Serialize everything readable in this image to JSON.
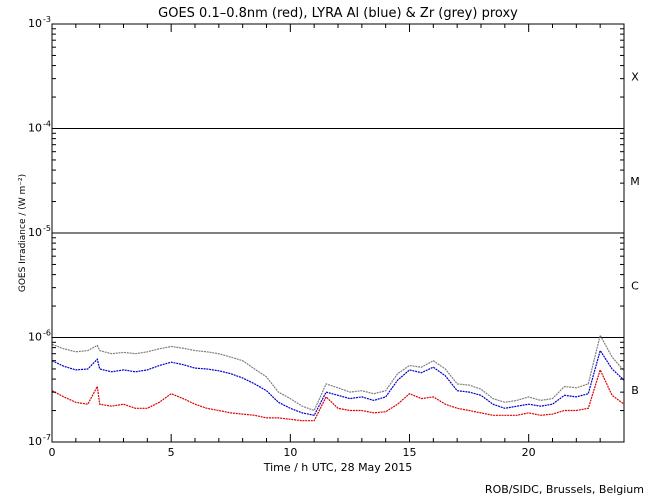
{
  "chart_data": {
    "type": "line",
    "title": "GOES 0.1–0.8nm (red), LYRA Al (blue) & Zr (grey) proxy",
    "xlabel": "Time / h UTC, 28 May 2015",
    "ylabel": "GOES Irradiance / (W m⁻²)",
    "xlim": [
      0,
      24
    ],
    "ylim": [
      1e-07,
      0.001
    ],
    "yscale": "log",
    "x_ticks": [
      0,
      5,
      10,
      15,
      20
    ],
    "y_ticks": [
      {
        "value": 1e-07,
        "mant": "10",
        "exp": "-7"
      },
      {
        "value": 1e-06,
        "mant": "10",
        "exp": "-6"
      },
      {
        "value": 1e-05,
        "mant": "10",
        "exp": "-5"
      },
      {
        "value": 0.0001,
        "mant": "10",
        "exp": "-4"
      },
      {
        "value": 0.001,
        "mant": "10",
        "exp": "-3"
      }
    ],
    "class_lines": [
      1e-06,
      1e-05,
      0.0001
    ],
    "flare_classes": [
      {
        "label": "X",
        "value": 0.000316
      },
      {
        "label": "M",
        "value": 3.16e-05
      },
      {
        "label": "C",
        "value": 3.16e-06
      },
      {
        "label": "B",
        "value": 3.16e-07
      }
    ],
    "series": [
      {
        "color": "#808080",
        "points": [
          [
            0,
            8.6e-07
          ],
          [
            0.5,
            7.8e-07
          ],
          [
            1.0,
            7.3e-07
          ],
          [
            1.5,
            7.5e-07
          ],
          [
            1.9,
            8.4e-07
          ],
          [
            2.0,
            7.5e-07
          ],
          [
            2.5,
            7e-07
          ],
          [
            3.0,
            7.2e-07
          ],
          [
            3.5,
            7e-07
          ],
          [
            4.0,
            7.3e-07
          ],
          [
            4.5,
            7.8e-07
          ],
          [
            5.0,
            8.2e-07
          ],
          [
            5.5,
            7.9e-07
          ],
          [
            6.0,
            7.5e-07
          ],
          [
            6.5,
            7.3e-07
          ],
          [
            7.0,
            7e-07
          ],
          [
            7.5,
            6.5e-07
          ],
          [
            8.0,
            6e-07
          ],
          [
            8.5,
            5e-07
          ],
          [
            9.0,
            4.2e-07
          ],
          [
            9.5,
            3e-07
          ],
          [
            10.0,
            2.6e-07
          ],
          [
            10.5,
            2.2e-07
          ],
          [
            11.0,
            2e-07
          ],
          [
            11.5,
            3.6e-07
          ],
          [
            12.0,
            3.3e-07
          ],
          [
            12.5,
            3e-07
          ],
          [
            13.0,
            3.1e-07
          ],
          [
            13.5,
            2.9e-07
          ],
          [
            14.0,
            3.1e-07
          ],
          [
            14.5,
            4.5e-07
          ],
          [
            15.0,
            5.4e-07
          ],
          [
            15.5,
            5.2e-07
          ],
          [
            16.0,
            6e-07
          ],
          [
            16.5,
            5e-07
          ],
          [
            17.0,
            3.6e-07
          ],
          [
            17.5,
            3.5e-07
          ],
          [
            18.0,
            3.2e-07
          ],
          [
            18.5,
            2.6e-07
          ],
          [
            19.0,
            2.4e-07
          ],
          [
            19.5,
            2.5e-07
          ],
          [
            20.0,
            2.7e-07
          ],
          [
            20.5,
            2.5e-07
          ],
          [
            21.0,
            2.6e-07
          ],
          [
            21.5,
            3.4e-07
          ],
          [
            22.0,
            3.3e-07
          ],
          [
            22.5,
            3.6e-07
          ],
          [
            23.0,
            1.05e-06
          ],
          [
            23.5,
            6.5e-07
          ],
          [
            24.0,
            4.8e-07
          ]
        ]
      },
      {
        "color": "#0000cc",
        "points": [
          [
            0,
            6e-07
          ],
          [
            0.5,
            5.3e-07
          ],
          [
            1.0,
            4.9e-07
          ],
          [
            1.5,
            5e-07
          ],
          [
            1.9,
            6.2e-07
          ],
          [
            2.0,
            5e-07
          ],
          [
            2.5,
            4.7e-07
          ],
          [
            3.0,
            4.9e-07
          ],
          [
            3.5,
            4.7e-07
          ],
          [
            4.0,
            4.9e-07
          ],
          [
            4.5,
            5.4e-07
          ],
          [
            5.0,
            5.8e-07
          ],
          [
            5.5,
            5.5e-07
          ],
          [
            6.0,
            5.1e-07
          ],
          [
            6.5,
            5e-07
          ],
          [
            7.0,
            4.8e-07
          ],
          [
            7.5,
            4.5e-07
          ],
          [
            8.0,
            4.1e-07
          ],
          [
            8.5,
            3.6e-07
          ],
          [
            9.0,
            3.1e-07
          ],
          [
            9.5,
            2.4e-07
          ],
          [
            10.0,
            2.1e-07
          ],
          [
            10.5,
            1.9e-07
          ],
          [
            11.0,
            1.8e-07
          ],
          [
            11.5,
            3e-07
          ],
          [
            12.0,
            2.8e-07
          ],
          [
            12.5,
            2.6e-07
          ],
          [
            13.0,
            2.7e-07
          ],
          [
            13.5,
            2.5e-07
          ],
          [
            14.0,
            2.7e-07
          ],
          [
            14.5,
            3.9e-07
          ],
          [
            15.0,
            4.9e-07
          ],
          [
            15.5,
            4.6e-07
          ],
          [
            16.0,
            5.2e-07
          ],
          [
            16.5,
            4.3e-07
          ],
          [
            17.0,
            3.1e-07
          ],
          [
            17.5,
            3e-07
          ],
          [
            18.0,
            2.8e-07
          ],
          [
            18.5,
            2.3e-07
          ],
          [
            19.0,
            2.1e-07
          ],
          [
            19.5,
            2.2e-07
          ],
          [
            20.0,
            2.3e-07
          ],
          [
            20.5,
            2.2e-07
          ],
          [
            21.0,
            2.3e-07
          ],
          [
            21.5,
            2.8e-07
          ],
          [
            22.0,
            2.7e-07
          ],
          [
            22.5,
            2.9e-07
          ],
          [
            23.0,
            7.5e-07
          ],
          [
            23.5,
            5e-07
          ],
          [
            24.0,
            3.9e-07
          ]
        ]
      },
      {
        "color": "#dd0000",
        "points": [
          [
            0,
            3.1e-07
          ],
          [
            0.5,
            2.7e-07
          ],
          [
            1.0,
            2.4e-07
          ],
          [
            1.5,
            2.3e-07
          ],
          [
            1.9,
            3.4e-07
          ],
          [
            2.0,
            2.3e-07
          ],
          [
            2.5,
            2.2e-07
          ],
          [
            3.0,
            2.3e-07
          ],
          [
            3.5,
            2.1e-07
          ],
          [
            4.0,
            2.1e-07
          ],
          [
            4.5,
            2.4e-07
          ],
          [
            5.0,
            2.9e-07
          ],
          [
            5.5,
            2.6e-07
          ],
          [
            6.0,
            2.3e-07
          ],
          [
            6.5,
            2.1e-07
          ],
          [
            7.0,
            2e-07
          ],
          [
            7.5,
            1.9e-07
          ],
          [
            8.0,
            1.85e-07
          ],
          [
            8.5,
            1.8e-07
          ],
          [
            9.0,
            1.7e-07
          ],
          [
            9.5,
            1.7e-07
          ],
          [
            10.0,
            1.65e-07
          ],
          [
            10.5,
            1.6e-07
          ],
          [
            11.0,
            1.6e-07
          ],
          [
            11.5,
            2.7e-07
          ],
          [
            12.0,
            2.1e-07
          ],
          [
            12.5,
            2e-07
          ],
          [
            13.0,
            2e-07
          ],
          [
            13.5,
            1.9e-07
          ],
          [
            14.0,
            1.95e-07
          ],
          [
            14.5,
            2.3e-07
          ],
          [
            15.0,
            2.9e-07
          ],
          [
            15.5,
            2.6e-07
          ],
          [
            16.0,
            2.7e-07
          ],
          [
            16.5,
            2.3e-07
          ],
          [
            17.0,
            2.1e-07
          ],
          [
            17.5,
            2e-07
          ],
          [
            18.0,
            1.9e-07
          ],
          [
            18.5,
            1.8e-07
          ],
          [
            19.0,
            1.8e-07
          ],
          [
            19.5,
            1.8e-07
          ],
          [
            20.0,
            1.9e-07
          ],
          [
            20.5,
            1.8e-07
          ],
          [
            21.0,
            1.85e-07
          ],
          [
            21.5,
            2e-07
          ],
          [
            22.0,
            2e-07
          ],
          [
            22.5,
            2.1e-07
          ],
          [
            23.0,
            4.9e-07
          ],
          [
            23.5,
            2.8e-07
          ],
          [
            24.0,
            2.3e-07
          ]
        ]
      }
    ]
  },
  "credit": "ROB/SIDC, Brussels, Belgium"
}
